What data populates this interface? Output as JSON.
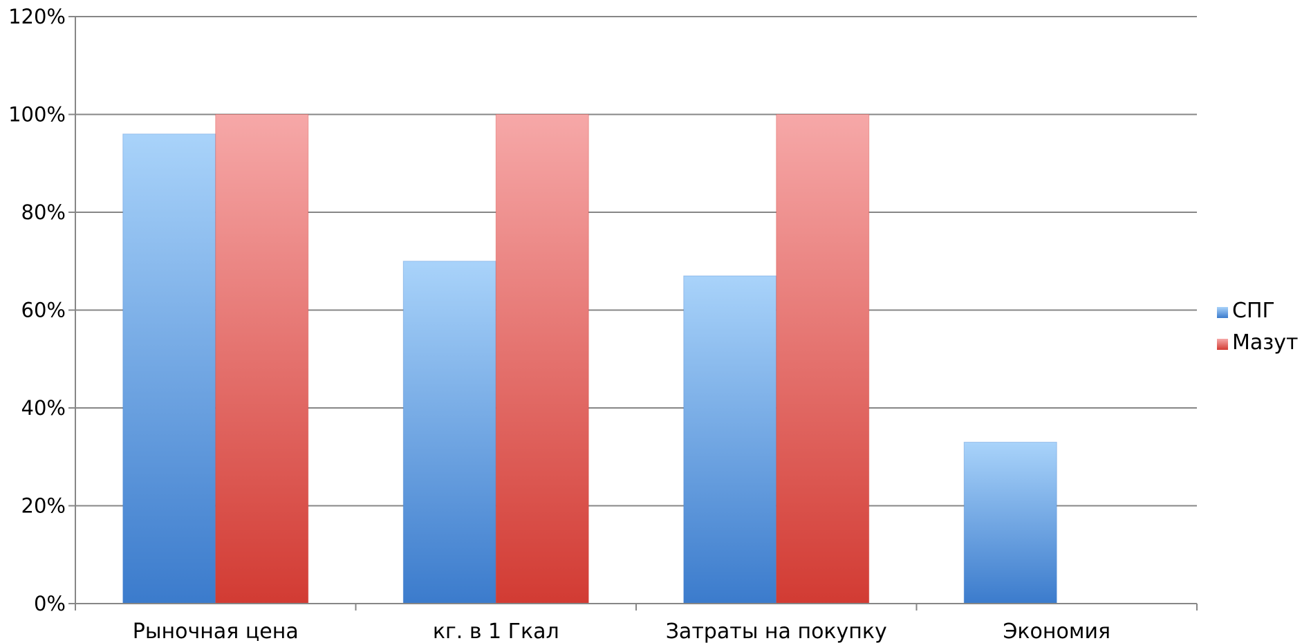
{
  "chart_data": {
    "type": "bar",
    "title": "",
    "xlabel": "",
    "ylabel": "",
    "categories": [
      "Рыночная цена",
      "кг. в 1 Гкал",
      "Затраты на покупку",
      "Экономия"
    ],
    "series": [
      {
        "name": "СПГ",
        "values": [
          96,
          70,
          67,
          33
        ],
        "color_top": "#a9d3fa",
        "color_bottom": "#3b7bcc"
      },
      {
        "name": "Мазут",
        "values": [
          100,
          100,
          100,
          null
        ],
        "color_top": "#f6a8a8",
        "color_bottom": "#d23b33"
      }
    ],
    "ylim": [
      0,
      120
    ],
    "yticks": [
      0,
      20,
      40,
      60,
      80,
      100,
      120
    ],
    "ytick_labels": [
      "0%",
      "20%",
      "40%",
      "60%",
      "80%",
      "100%",
      "120%"
    ],
    "grid": true,
    "gridline_color": "#868686",
    "axis_color": "#868686",
    "legend_position": "right"
  }
}
